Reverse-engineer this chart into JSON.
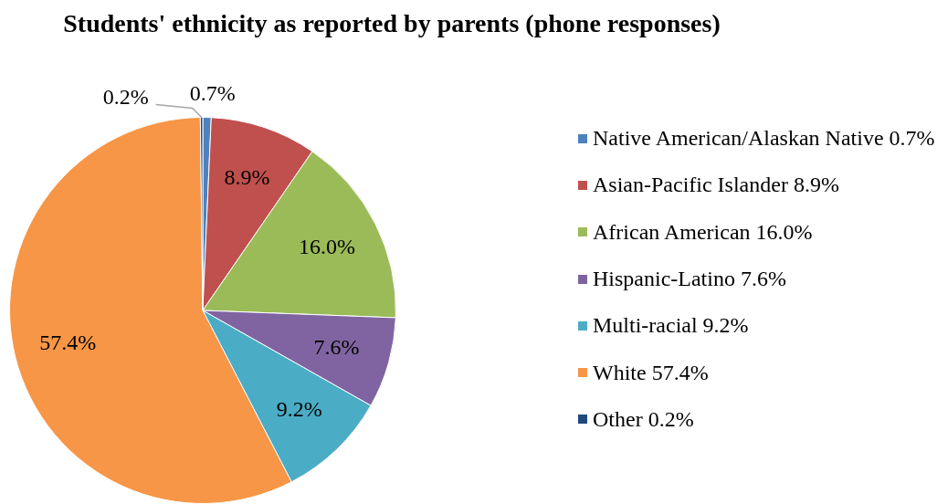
{
  "chart_data": {
    "type": "pie",
    "title": "Students' ethnicity as reported by parents (phone responses)",
    "categories": [
      "Native American/Alaskan Native 0.7%",
      "Asian-Pacific Islander 8.9%",
      "African American 16.0%",
      "Hispanic-Latino 7.6%",
      "Multi-racial 9.2%",
      "White 57.4%",
      "Other 0.2%"
    ],
    "values": [
      0.7,
      8.9,
      16.0,
      7.6,
      9.2,
      57.4,
      0.2
    ],
    "value_labels": [
      "0.7%",
      "8.9%",
      "16.0%",
      "7.6%",
      "9.2%",
      "57.4%",
      "0.2%"
    ],
    "colors": [
      "#4f81bd",
      "#c0504d",
      "#9bbb59",
      "#8064a2",
      "#4bacc6",
      "#f79646",
      "#1f497d"
    ],
    "legend": "right"
  }
}
